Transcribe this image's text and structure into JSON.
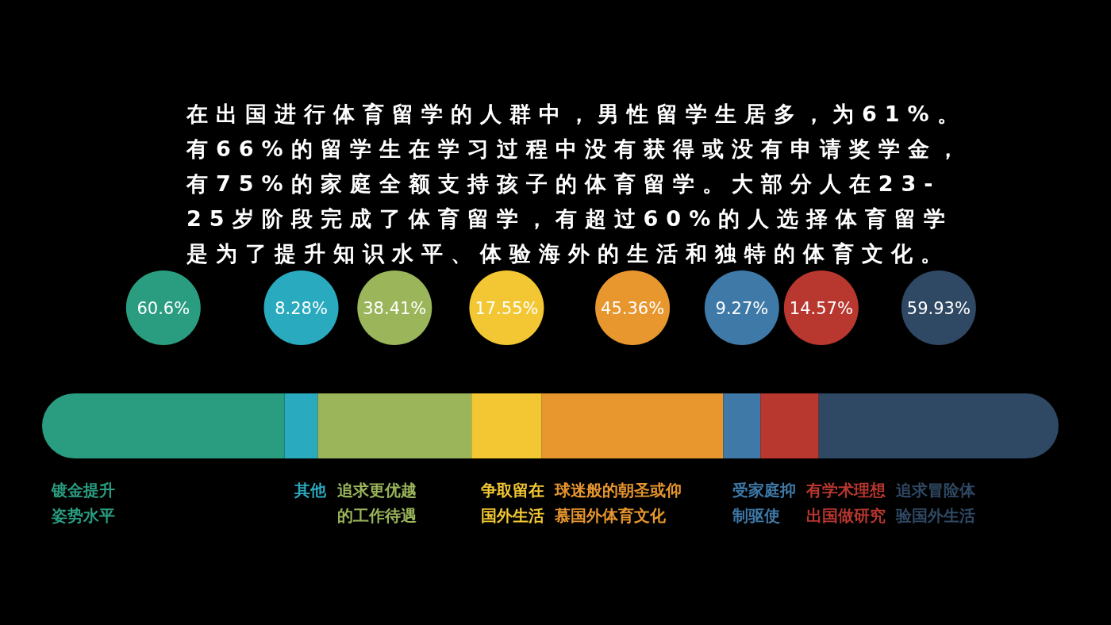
{
  "chart_data": {
    "type": "other",
    "title": "在出国进行体育留学的人群中，男性留学生居多，为61%。有66%的留学生在学习过程中没有获得或没有申请奖学金，有75%的家庭全额支持孩子的体育留学。大部分人在23-25岁阶段完成了体育留学，有超过60%的人选择体育留学是为了提升知识水平、体验海外的生活和独特的体育文化。",
    "categories": [
      "镀金提升姿势水平",
      "其他",
      "追求更优越的工作待遇",
      "争取留在国外生活",
      "球迷般的朝圣或仰慕国外体育文化",
      "受家庭抑制驱使",
      "有学术理想出国做研究",
      "追求冒险体验国外生活"
    ],
    "values": [
      60.6,
      8.28,
      38.41,
      17.55,
      45.36,
      9.27,
      14.57,
      59.93
    ],
    "colors": [
      "#2a9d80",
      "#2aaabf",
      "#9ab55a",
      "#f2c733",
      "#e8962e",
      "#3e79a8",
      "#b8372f",
      "#2f4863"
    ],
    "value_labels": [
      "60.6%",
      "8.28%",
      "38.41%",
      "17.55%",
      "45.36%",
      "9.27%",
      "14.57%",
      "59.93%"
    ]
  }
}
